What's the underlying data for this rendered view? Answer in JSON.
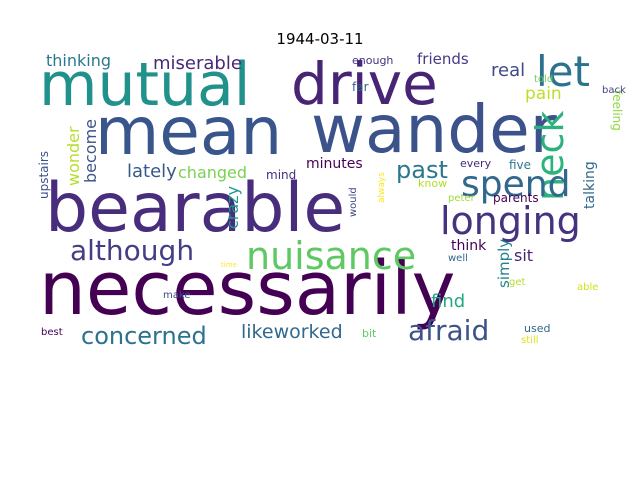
{
  "title": "1944-03-11",
  "words": [
    {
      "text": "necessarily",
      "color": "#440154"
    },
    {
      "text": "bearable",
      "color": "#472d7b"
    },
    {
      "text": "mean",
      "color": "#39568c"
    },
    {
      "text": "wander",
      "color": "#3b528b"
    },
    {
      "text": "mutual",
      "color": "#21918c"
    },
    {
      "text": "drive",
      "color": "#482475"
    },
    {
      "text": "let",
      "color": "#2c728e"
    },
    {
      "text": "neck",
      "color": "#2db27d"
    },
    {
      "text": "longing",
      "color": "#46327e"
    },
    {
      "text": "spend",
      "color": "#31688e"
    },
    {
      "text": "nuisance",
      "color": "#5ec962"
    },
    {
      "text": "although",
      "color": "#433e85"
    },
    {
      "text": "afraid",
      "color": "#3b528b"
    },
    {
      "text": "concerned",
      "color": "#2c728e"
    },
    {
      "text": "likeworked",
      "color": "#31688e"
    },
    {
      "text": "past",
      "color": "#2a788e"
    },
    {
      "text": "miserable",
      "color": "#482878"
    },
    {
      "text": "thinking",
      "color": "#2a788e"
    },
    {
      "text": "friends",
      "color": "#443a83"
    },
    {
      "text": "real",
      "color": "#3e4989"
    },
    {
      "text": "pain",
      "color": "#bddf26"
    },
    {
      "text": "become",
      "color": "#3b528b"
    },
    {
      "text": "wonder",
      "color": "#b5de2b"
    },
    {
      "text": "lately",
      "color": "#38588c"
    },
    {
      "text": "changed",
      "color": "#7ad151"
    },
    {
      "text": "crazy",
      "color": "#1f988b"
    },
    {
      "text": "minutes",
      "color": "#440154"
    },
    {
      "text": "mind",
      "color": "#472d7b"
    },
    {
      "text": "find",
      "color": "#22a884"
    },
    {
      "text": "simply",
      "color": "#26828e"
    },
    {
      "text": "sit",
      "color": "#482475"
    },
    {
      "text": "think",
      "color": "#440154"
    },
    {
      "text": "talking",
      "color": "#31688e"
    },
    {
      "text": "feeling",
      "color": "#8fd744"
    },
    {
      "text": "upstairs",
      "color": "#3b528b"
    },
    {
      "text": "enough",
      "color": "#46327e"
    },
    {
      "text": "far",
      "color": "#355f8d"
    },
    {
      "text": "told",
      "color": "#6ece58"
    },
    {
      "text": "back",
      "color": "#404688"
    },
    {
      "text": "every",
      "color": "#482878"
    },
    {
      "text": "five",
      "color": "#2a788e"
    },
    {
      "text": "know",
      "color": "#b5de2b"
    },
    {
      "text": "peter",
      "color": "#9fda3a"
    },
    {
      "text": "parents",
      "color": "#440154"
    },
    {
      "text": "would",
      "color": "#3e4989"
    },
    {
      "text": "always",
      "color": "#fde725"
    },
    {
      "text": "well",
      "color": "#31688e"
    },
    {
      "text": "get",
      "color": "#b5de2b"
    },
    {
      "text": "able",
      "color": "#d2e21b"
    },
    {
      "text": "time",
      "color": "#fde725"
    },
    {
      "text": "make",
      "color": "#3e4989"
    },
    {
      "text": "best",
      "color": "#440154"
    },
    {
      "text": "bit",
      "color": "#5ec962"
    },
    {
      "text": "used",
      "color": "#31688e"
    },
    {
      "text": "still",
      "color": "#dde318"
    }
  ]
}
